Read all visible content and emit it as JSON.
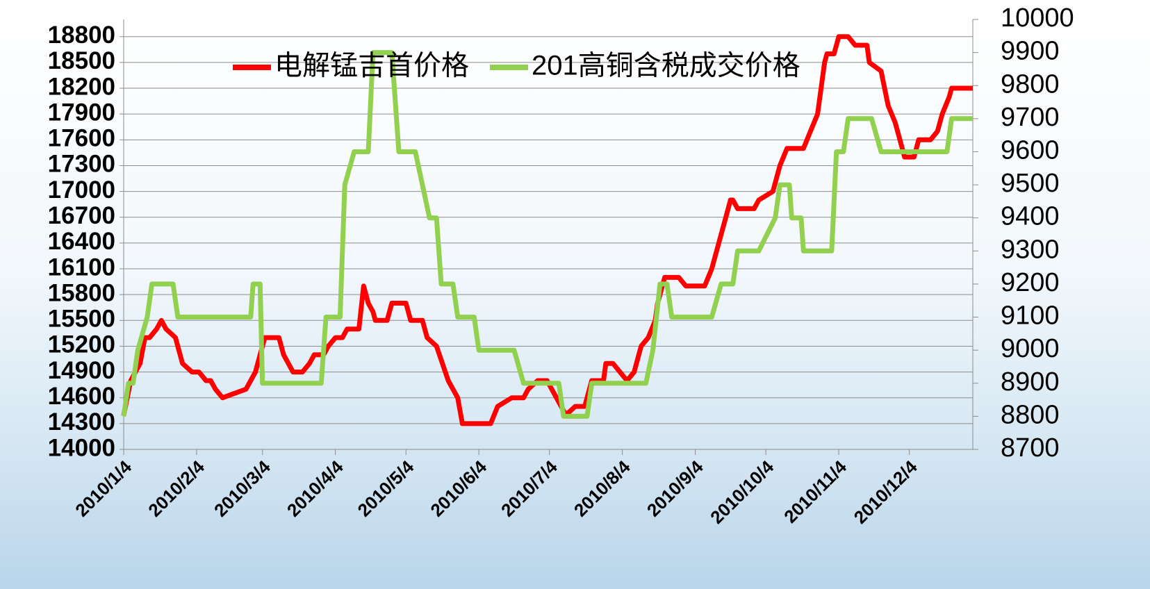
{
  "chart_data": {
    "type": "line",
    "xlim": [
      "2010/1/4",
      "2010/12/31"
    ],
    "xticks": [
      "2010/1/4",
      "2010/2/4",
      "2010/3/4",
      "2010/4/4",
      "2010/5/4",
      "2010/6/4",
      "2010/7/4",
      "2010/8/4",
      "2010/9/4",
      "2010/10/4",
      "2010/11/4",
      "2010/12/4"
    ],
    "ylim": [
      14000,
      19000
    ],
    "yticks": [
      14000,
      14300,
      14600,
      14900,
      15200,
      15500,
      15800,
      16100,
      16400,
      16700,
      17000,
      17300,
      17600,
      17900,
      18200,
      18500,
      18800
    ],
    "y2lim": [
      8700,
      10000
    ],
    "y2ticks": [
      8700,
      8800,
      8900,
      9000,
      9100,
      9200,
      9300,
      9400,
      9500,
      9600,
      9700,
      9800,
      9900,
      10000
    ],
    "grid": true,
    "legend": "top",
    "series": [
      {
        "name": "电解锰吉首价格",
        "color": "#ff0000",
        "x": [
          "2010/1/4",
          "2010/1/7",
          "2010/1/9",
          "2010/1/11",
          "2010/1/13",
          "2010/1/15",
          "2010/1/18",
          "2010/1/20",
          "2010/1/22",
          "2010/1/26",
          "2010/1/29",
          "2010/2/2",
          "2010/2/5",
          "2010/2/8",
          "2010/2/10",
          "2010/2/12",
          "2010/2/15",
          "2010/2/25",
          "2010/2/27",
          "2010/3/1",
          "2010/3/3",
          "2010/3/5",
          "2010/3/11",
          "2010/3/13",
          "2010/3/17",
          "2010/3/21",
          "2010/3/24",
          "2010/3/26",
          "2010/3/30",
          "2010/4/1",
          "2010/4/4",
          "2010/4/7",
          "2010/4/9",
          "2010/4/14",
          "2010/4/16",
          "2010/4/18",
          "2010/4/20",
          "2010/4/21",
          "2010/4/26",
          "2010/4/28",
          "2010/5/4",
          "2010/5/6",
          "2010/5/11",
          "2010/5/13",
          "2010/5/17",
          "2010/5/22",
          "2010/5/26",
          "2010/5/28",
          "2010/6/9",
          "2010/6/12",
          "2010/6/18",
          "2010/6/23",
          "2010/6/25",
          "2010/6/29",
          "2010/7/3",
          "2010/7/7",
          "2010/7/11",
          "2010/7/15",
          "2010/7/19",
          "2010/7/22",
          "2010/7/27",
          "2010/7/28",
          "2010/7/31",
          "2010/8/3",
          "2010/8/6",
          "2010/8/9",
          "2010/8/12",
          "2010/8/15",
          "2010/8/18",
          "2010/8/19",
          "2010/8/22",
          "2010/8/28",
          "2010/8/31",
          "2010/9/8",
          "2010/9/11",
          "2010/9/17",
          "2010/9/19",
          "2010/9/20",
          "2010/9/22",
          "2010/9/29",
          "2010/10/1",
          "2010/10/7",
          "2010/10/10",
          "2010/10/13",
          "2010/10/20",
          "2010/10/23",
          "2010/10/26",
          "2010/10/29",
          "2010/10/30",
          "2010/11/2",
          "2010/11/4",
          "2010/11/8",
          "2010/11/11",
          "2010/11/16",
          "2010/11/17",
          "2010/11/22",
          "2010/11/25",
          "2010/11/28",
          "2010/11/29",
          "2010/12/2",
          "2010/12/6",
          "2010/12/8",
          "2010/12/13",
          "2010/12/16",
          "2010/12/18",
          "2010/12/21",
          "2010/12/22",
          "2010/12/31"
        ],
        "values": [
          14400,
          14800,
          14900,
          15000,
          15300,
          15300,
          15400,
          15500,
          15400,
          15300,
          15000,
          14900,
          14900,
          14800,
          14800,
          14700,
          14600,
          14700,
          14800,
          14900,
          15100,
          15300,
          15300,
          15100,
          14900,
          14900,
          15000,
          15100,
          15100,
          15200,
          15300,
          15300,
          15400,
          15400,
          15900,
          15700,
          15600,
          15500,
          15500,
          15700,
          15700,
          15500,
          15500,
          15300,
          15200,
          14800,
          14600,
          14300,
          14300,
          14500,
          14600,
          14600,
          14700,
          14800,
          14800,
          14600,
          14400,
          14500,
          14500,
          14800,
          14800,
          15000,
          15000,
          14900,
          14800,
          14900,
          15200,
          15300,
          15500,
          15700,
          16000,
          16000,
          15900,
          15900,
          16100,
          16700,
          16900,
          16900,
          16800,
          16800,
          16900,
          17000,
          17300,
          17500,
          17500,
          17700,
          17900,
          18500,
          18600,
          18600,
          18800,
          18800,
          18700,
          18700,
          18500,
          18400,
          18000,
          17800,
          17700,
          17400,
          17400,
          17600,
          17600,
          17700,
          17900,
          18100,
          18200,
          18200
        ]
      },
      {
        "name": "201高铜含税成交价格",
        "color": "#92d050",
        "axis": "y2",
        "x": [
          "2010/1/4",
          "2010/1/6",
          "2010/1/8",
          "2010/1/10",
          "2010/1/14",
          "2010/1/16",
          "2010/1/25",
          "2010/1/27",
          "2010/2/27",
          "2010/2/28",
          "2010/3/3",
          "2010/3/4",
          "2010/3/29",
          "2010/3/31",
          "2010/4/6",
          "2010/4/8",
          "2010/4/12",
          "2010/4/18",
          "2010/4/20",
          "2010/4/28",
          "2010/5/1",
          "2010/5/8",
          "2010/5/11",
          "2010/5/14",
          "2010/5/17",
          "2010/5/19",
          "2010/5/24",
          "2010/5/26",
          "2010/6/2",
          "2010/6/4",
          "2010/6/19",
          "2010/6/23",
          "2010/7/8",
          "2010/7/10",
          "2010/7/20",
          "2010/7/22",
          "2010/8/14",
          "2010/8/17",
          "2010/8/20",
          "2010/8/23",
          "2010/8/25",
          "2010/9/11",
          "2010/9/15",
          "2010/9/20",
          "2010/9/22",
          "2010/10/1",
          "2010/10/8",
          "2010/10/10",
          "2010/10/14",
          "2010/10/15",
          "2010/10/19",
          "2010/10/20",
          "2010/11/1",
          "2010/11/3",
          "2010/11/6",
          "2010/11/8",
          "2010/11/18",
          "2010/11/22",
          "2010/12/20",
          "2010/12/22",
          "2010/12/31"
        ],
        "values": [
          8800,
          8900,
          8900,
          9000,
          9100,
          9200,
          9200,
          9100,
          9100,
          9200,
          9200,
          8900,
          8900,
          9100,
          9100,
          9500,
          9600,
          9600,
          9900,
          9900,
          9600,
          9600,
          9500,
          9400,
          9400,
          9200,
          9200,
          9100,
          9100,
          9000,
          9000,
          8900,
          8900,
          8800,
          8800,
          8900,
          8900,
          9000,
          9200,
          9200,
          9100,
          9100,
          9200,
          9200,
          9300,
          9300,
          9400,
          9500,
          9500,
          9400,
          9400,
          9300,
          9300,
          9600,
          9600,
          9700,
          9700,
          9600,
          9600,
          9700,
          9700
        ]
      }
    ]
  }
}
